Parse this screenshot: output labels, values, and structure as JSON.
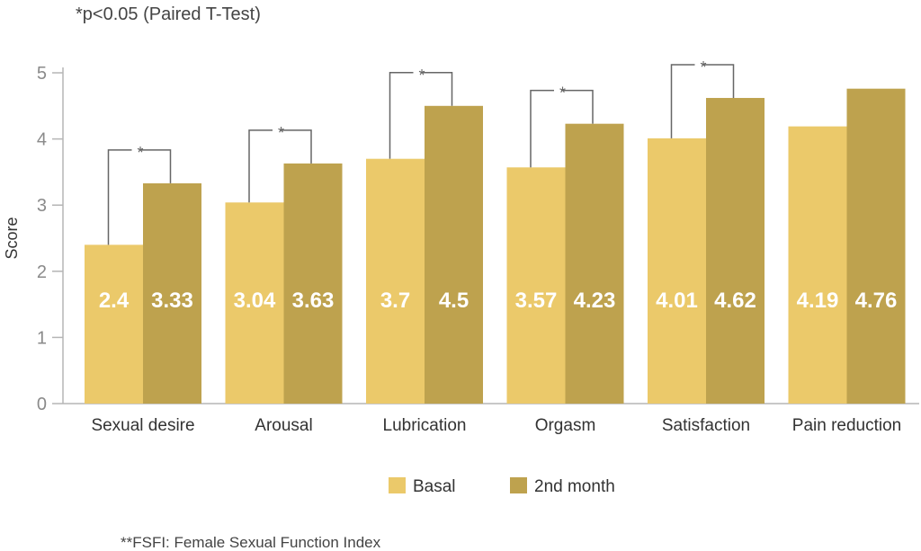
{
  "chart_data": {
    "type": "bar",
    "note_top": "*p<0.05 (Paired T-Test)",
    "footnote": "**FSFI: Female Sexual Function Index",
    "ylabel": "Score",
    "xlabel": "",
    "ylim": [
      0,
      5
    ],
    "yticks": [
      "0",
      "1",
      "2",
      "3",
      "4",
      "5"
    ],
    "categories": [
      "Sexual desire",
      "Arousal",
      "Lubrication",
      "Orgasm",
      "Satisfaction",
      "Pain reduction"
    ],
    "series": [
      {
        "name": "Basal",
        "color": "#ebc96a",
        "values": [
          2.4,
          3.04,
          3.7,
          3.57,
          4.01,
          4.19
        ],
        "labels": [
          "2.4",
          "3.04",
          "3.7",
          "3.57",
          "4.01",
          "4.19"
        ]
      },
      {
        "name": "2nd month",
        "color": "#bea24e",
        "values": [
          3.33,
          3.63,
          4.5,
          4.23,
          4.62,
          4.76
        ],
        "labels": [
          "3.33",
          "3.63",
          "4.5",
          "4.23",
          "4.62",
          "4.76"
        ]
      }
    ],
    "significance_marker": "*",
    "significant": [
      true,
      true,
      true,
      true,
      true,
      false
    ],
    "legend_position": "bottom-center"
  }
}
